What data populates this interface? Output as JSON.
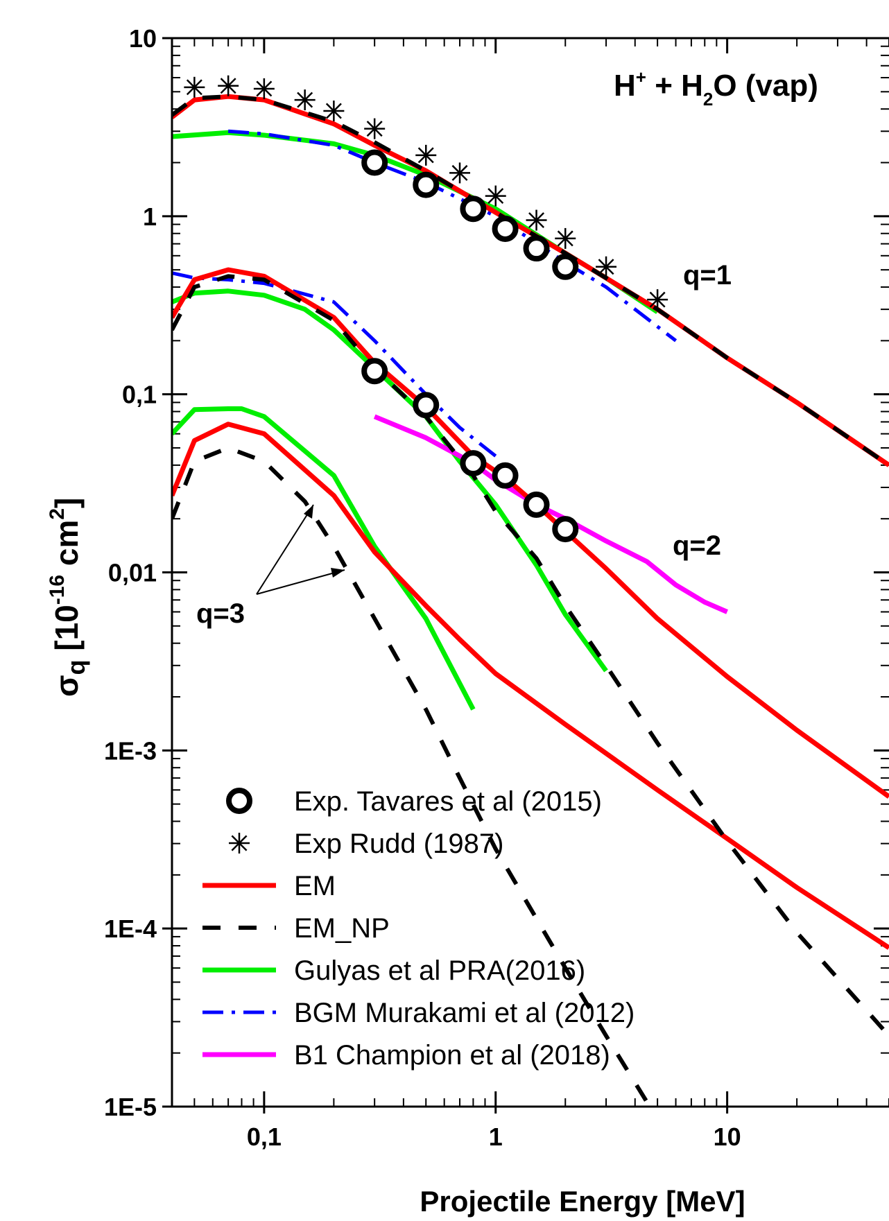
{
  "chart_data": {
    "type": "line",
    "title": "H⁺ + H₂O (vap)",
    "title_parts": {
      "h": "H",
      "plus": "+",
      "mid": " + H",
      "sub": "2",
      "tail": "O (vap)"
    },
    "xlabel": "Projectile Energy [MeV]",
    "ylabel": {
      "sigma": "σ",
      "q": "q",
      "open": " [10",
      "exp": "-16",
      "unit": " cm",
      "sq": "2",
      "close": "]"
    },
    "x_scale": "log",
    "y_scale": "log",
    "xlim": [
      0.04,
      50
    ],
    "ylim": [
      1e-05,
      10
    ],
    "x_ticks": [
      {
        "v": 0.1,
        "label": "0,1"
      },
      {
        "v": 1,
        "label": "1"
      },
      {
        "v": 10,
        "label": "10"
      }
    ],
    "y_ticks": [
      {
        "v": 10,
        "label": "10"
      },
      {
        "v": 1,
        "label": "1"
      },
      {
        "v": 0.1,
        "label": "0,1"
      },
      {
        "v": 0.01,
        "label": "0,01"
      },
      {
        "v": 0.001,
        "label": "1E-3"
      },
      {
        "v": 0.0001,
        "label": "1E-4"
      },
      {
        "v": 1e-05,
        "label": "1E-5"
      }
    ],
    "annotations": {
      "q1": "q=1",
      "q2": "q=2",
      "q3": "q=3"
    },
    "legend_position": "bottom-left",
    "series": [
      {
        "key": "tavares",
        "name": "Exp. Tavares et al (2015)",
        "style": "circle",
        "color": "#000000",
        "x": [
          0.3,
          0.5,
          0.8,
          1.1,
          1.5,
          2.0,
          0.3,
          0.5,
          0.8,
          1.1,
          1.5,
          2.0
        ],
        "y": [
          2.0,
          1.5,
          1.1,
          0.85,
          0.66,
          0.52,
          0.135,
          0.087,
          0.041,
          0.035,
          0.024,
          0.0175
        ]
      },
      {
        "key": "rudd",
        "name": "Exp Rudd (1987)",
        "style": "asterisk",
        "color": "#000000",
        "x": [
          0.05,
          0.07,
          0.1,
          0.15,
          0.2,
          0.3,
          0.5,
          0.7,
          1.0,
          1.5,
          2.0,
          3.0,
          5.0
        ],
        "y": [
          5.3,
          5.4,
          5.2,
          4.5,
          3.9,
          3.1,
          2.2,
          1.75,
          1.3,
          0.95,
          0.75,
          0.52,
          0.34
        ]
      },
      {
        "key": "em",
        "name": "EM",
        "style": "solid",
        "color": "#ff0000",
        "lines": [
          {
            "x": [
              0.04,
              0.05,
              0.07,
              0.1,
              0.2,
              0.3,
              0.5,
              1,
              2,
              5,
              10,
              20,
              50
            ],
            "y": [
              3.6,
              4.5,
              4.7,
              4.5,
              3.3,
              2.5,
              1.8,
              1.05,
              0.62,
              0.3,
              0.16,
              0.09,
              0.04
            ]
          },
          {
            "x": [
              0.04,
              0.05,
              0.07,
              0.1,
              0.2,
              0.3,
              0.5,
              0.8,
              1.1,
              1.5,
              2,
              3,
              5,
              10,
              20,
              50
            ],
            "y": [
              0.27,
              0.44,
              0.5,
              0.46,
              0.27,
              0.15,
              0.085,
              0.045,
              0.034,
              0.024,
              0.017,
              0.0105,
              0.0055,
              0.0026,
              0.0013,
              0.00055
            ]
          },
          {
            "x": [
              0.04,
              0.05,
              0.07,
              0.1,
              0.2,
              0.3,
              0.5,
              0.7,
              1,
              2,
              5,
              10,
              20,
              50
            ],
            "y": [
              0.027,
              0.055,
              0.068,
              0.06,
              0.027,
              0.013,
              0.0065,
              0.0042,
              0.0027,
              0.0014,
              0.0006,
              0.00032,
              0.00017,
              7.8e-05
            ]
          }
        ]
      },
      {
        "key": "em_np",
        "name": "EM_NP",
        "style": "dashed",
        "color": "#000000",
        "lines": [
          {
            "x": [
              0.04,
              0.05,
              0.07,
              0.1,
              0.2,
              0.3,
              0.5,
              1,
              2,
              5,
              10,
              20,
              50
            ],
            "y": [
              3.7,
              4.6,
              4.7,
              4.5,
              3.4,
              2.6,
              1.8,
              1.05,
              0.62,
              0.3,
              0.16,
              0.09,
              0.04
            ]
          },
          {
            "x": [
              0.04,
              0.05,
              0.07,
              0.1,
              0.2,
              0.3,
              0.5,
              0.8,
              1.0,
              1.5,
              2,
              3,
              5,
              10,
              20,
              50
            ],
            "y": [
              0.23,
              0.4,
              0.46,
              0.44,
              0.26,
              0.14,
              0.075,
              0.035,
              0.022,
              0.012,
              0.0065,
              0.003,
              0.0011,
              0.00031,
              9.5e-05,
              2.5e-05
            ]
          },
          {
            "x": [
              0.04,
              0.05,
              0.07,
              0.1,
              0.15,
              0.2,
              0.3,
              0.5,
              0.7,
              1,
              2,
              3,
              5
            ],
            "y": [
              0.02,
              0.042,
              0.05,
              0.042,
              0.025,
              0.014,
              0.0055,
              0.0017,
              0.0007,
              0.00028,
              6e-05,
              2.5e-05,
              8.5e-06
            ]
          }
        ]
      },
      {
        "key": "gulyas",
        "name": "Gulyas et al PRA(2016)",
        "style": "solid",
        "color": "#00ee00",
        "lines": [
          {
            "x": [
              0.04,
              0.07,
              0.1,
              0.2,
              0.3,
              0.5,
              1,
              2,
              3,
              5
            ],
            "y": [
              2.8,
              2.95,
              2.85,
              2.55,
              2.2,
              1.7,
              1.1,
              0.62,
              0.45,
              0.29
            ]
          },
          {
            "x": [
              0.04,
              0.05,
              0.07,
              0.1,
              0.15,
              0.2,
              0.3,
              0.5,
              0.7,
              1,
              1.5,
              2,
              3
            ],
            "y": [
              0.33,
              0.37,
              0.38,
              0.36,
              0.3,
              0.23,
              0.14,
              0.075,
              0.042,
              0.024,
              0.011,
              0.0058,
              0.0028
            ]
          },
          {
            "x": [
              0.04,
              0.05,
              0.07,
              0.08,
              0.1,
              0.2,
              0.3,
              0.5,
              0.8
            ],
            "y": [
              0.06,
              0.082,
              0.083,
              0.083,
              0.075,
              0.035,
              0.014,
              0.0055,
              0.0017
            ]
          }
        ]
      },
      {
        "key": "bgm",
        "name": "BGM Murakami et al (2012)",
        "style": "dashdot",
        "color": "#0000ff",
        "lines": [
          {
            "x": [
              0.07,
              0.1,
              0.2,
              0.3,
              0.5,
              1,
              2,
              3,
              6
            ],
            "y": [
              3.0,
              2.9,
              2.5,
              2.0,
              1.55,
              1.0,
              0.55,
              0.4,
              0.2
            ]
          },
          {
            "x": [
              0.04,
              0.05,
              0.07,
              0.1,
              0.2,
              0.3,
              0.5,
              0.7,
              1
            ],
            "y": [
              0.48,
              0.45,
              0.44,
              0.42,
              0.33,
              0.2,
              0.1,
              0.065,
              0.045
            ]
          }
        ]
      },
      {
        "key": "b1",
        "name": "B1 Champion et al (2018)",
        "style": "solid",
        "color": "#ff00ff",
        "lines": [
          {
            "x": [
              0.3,
              0.5,
              0.8,
              1,
              1.5,
              2,
              3,
              4.5,
              6,
              8,
              10
            ],
            "y": [
              0.075,
              0.057,
              0.041,
              0.033,
              0.024,
              0.02,
              0.015,
              0.0115,
              0.0085,
              0.0068,
              0.006
            ]
          }
        ]
      }
    ]
  }
}
